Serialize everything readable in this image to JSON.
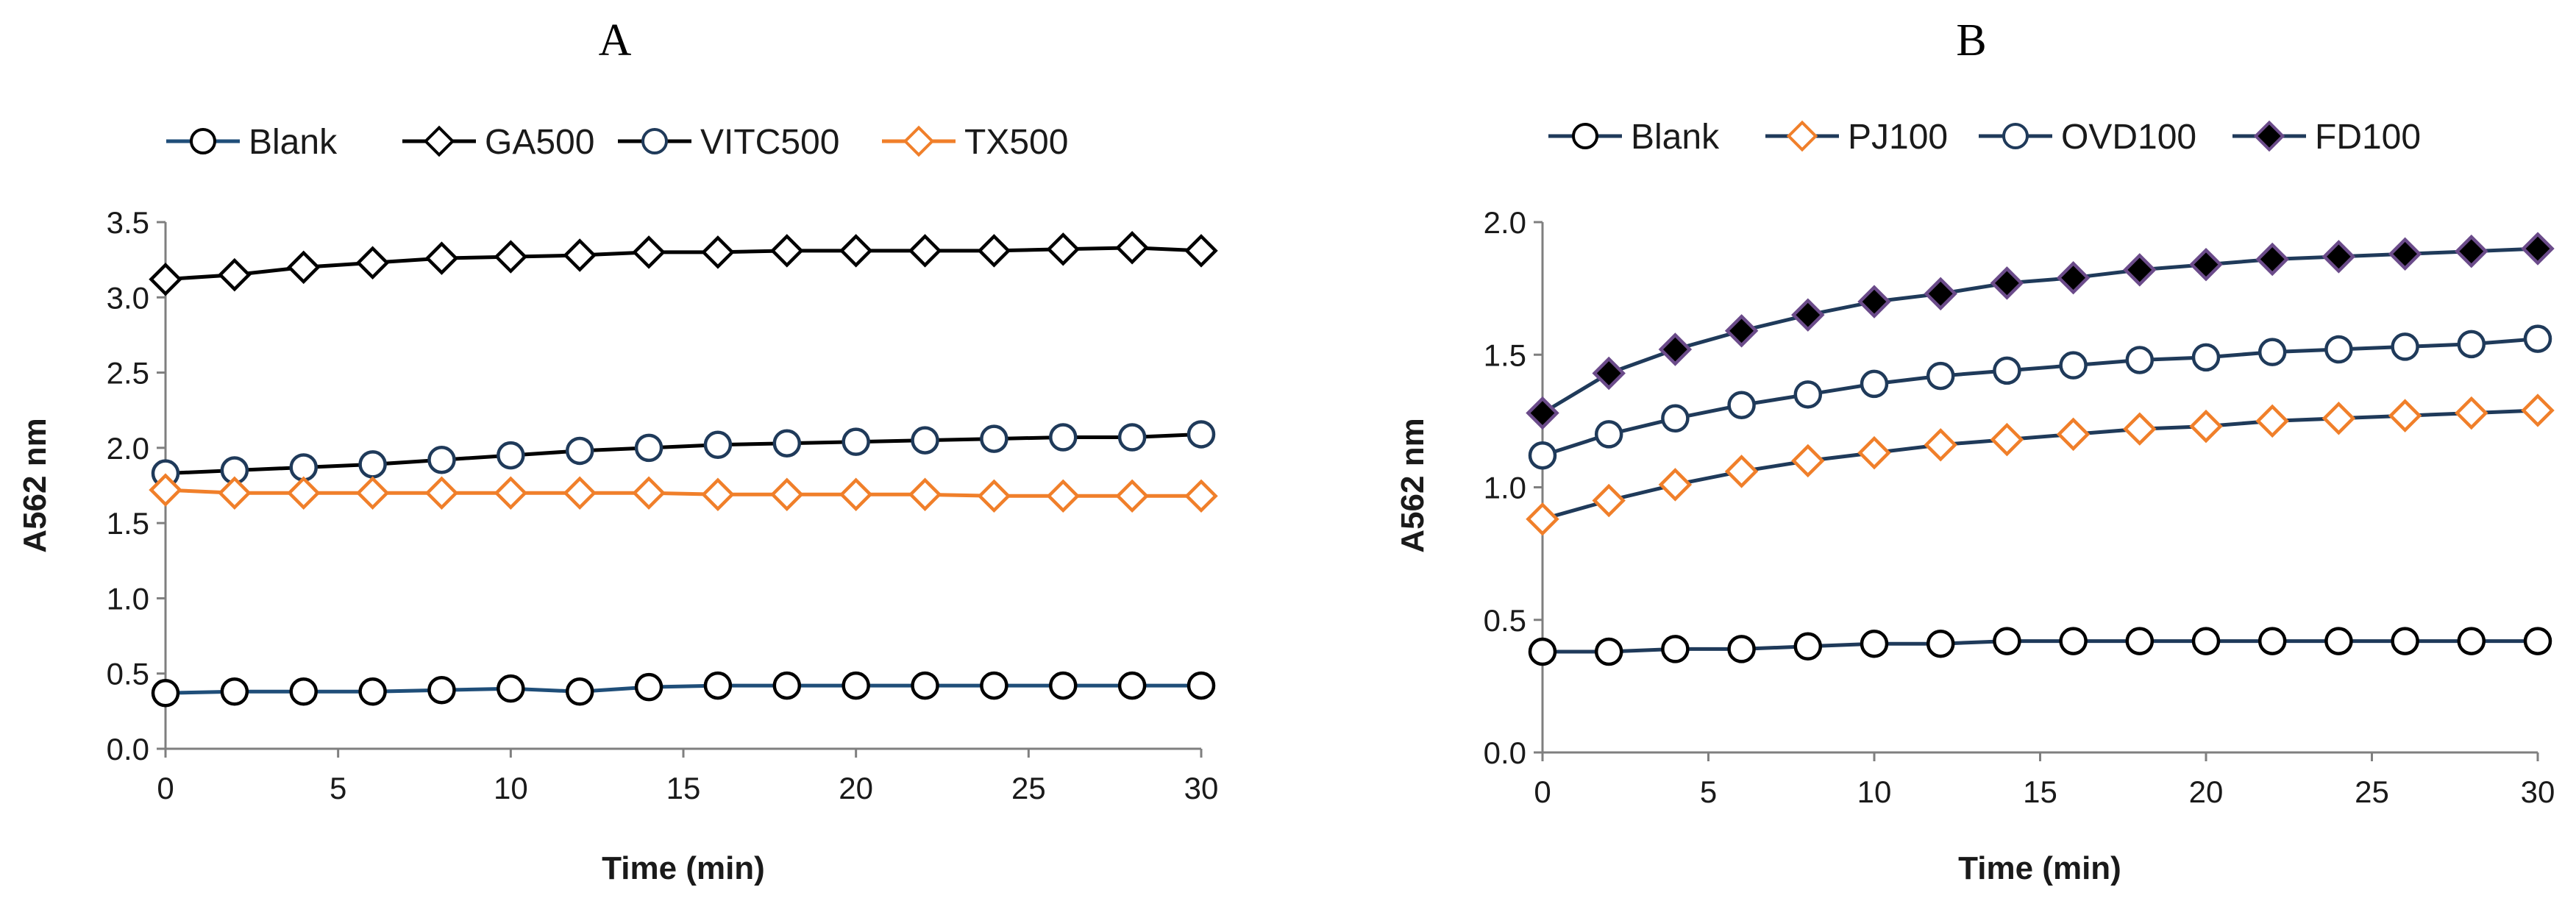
{
  "chart_data": [
    {
      "type": "line",
      "panel": "A",
      "xlabel": "Time (min)",
      "ylabel": "A562 nm",
      "xlim": [
        0,
        30
      ],
      "ylim": [
        0.0,
        3.5
      ],
      "xticks": [
        "0",
        "5",
        "10",
        "15",
        "20",
        "25",
        "30"
      ],
      "yticks": [
        "0.0",
        "0.5",
        "1.0",
        "1.5",
        "2.0",
        "2.5",
        "3.0",
        "3.5"
      ],
      "grid": false,
      "legend_position": "top",
      "x": [
        0,
        2,
        4,
        6,
        8,
        10,
        12,
        14,
        16,
        18,
        20,
        22,
        24,
        26,
        28,
        30
      ],
      "series": [
        {
          "name": "Blank",
          "marker": "circle",
          "line_color": "#1f4e79",
          "marker_edge": "#000000",
          "marker_fill": "#ffffff",
          "values": [
            0.37,
            0.38,
            0.38,
            0.38,
            0.39,
            0.4,
            0.38,
            0.41,
            0.42,
            0.42,
            0.42,
            0.42,
            0.42,
            0.42,
            0.42,
            0.42
          ]
        },
        {
          "name": "GA500",
          "marker": "diamond",
          "line_color": "#000000",
          "marker_edge": "#000000",
          "marker_fill": "#ffffff",
          "values": [
            3.12,
            3.15,
            3.2,
            3.23,
            3.26,
            3.27,
            3.28,
            3.3,
            3.3,
            3.31,
            3.31,
            3.31,
            3.31,
            3.32,
            3.33,
            3.31
          ]
        },
        {
          "name": "VITC500",
          "marker": "circle",
          "line_color": "#000000",
          "marker_edge": "#1f3a5a",
          "marker_fill": "#ffffff",
          "values": [
            1.83,
            1.85,
            1.87,
            1.89,
            1.92,
            1.95,
            1.98,
            2.0,
            2.02,
            2.03,
            2.04,
            2.05,
            2.06,
            2.07,
            2.07,
            2.09
          ]
        },
        {
          "name": "TX500",
          "marker": "diamond",
          "line_color": "#f07f2a",
          "marker_edge": "#f07f2a",
          "marker_fill": "#ffffff",
          "values": [
            1.72,
            1.7,
            1.7,
            1.7,
            1.7,
            1.7,
            1.7,
            1.7,
            1.69,
            1.69,
            1.69,
            1.69,
            1.68,
            1.68,
            1.68,
            1.68
          ]
        }
      ]
    },
    {
      "type": "line",
      "panel": "B",
      "xlabel": "Time (min)",
      "ylabel": "A562 nm",
      "xlim": [
        0,
        30
      ],
      "ylim": [
        0.0,
        2.0
      ],
      "xticks": [
        "0",
        "5",
        "10",
        "15",
        "20",
        "25",
        "30"
      ],
      "yticks": [
        "0.0",
        "0.5",
        "1.0",
        "1.5",
        "2.0"
      ],
      "grid": false,
      "legend_position": "top",
      "x": [
        0,
        2,
        4,
        6,
        8,
        10,
        12,
        14,
        16,
        18,
        20,
        22,
        24,
        26,
        28,
        30
      ],
      "series": [
        {
          "name": "Blank",
          "marker": "circle",
          "line_color": "#1f3a5a",
          "marker_edge": "#000000",
          "marker_fill": "#ffffff",
          "values": [
            0.38,
            0.38,
            0.39,
            0.39,
            0.4,
            0.41,
            0.41,
            0.42,
            0.42,
            0.42,
            0.42,
            0.42,
            0.42,
            0.42,
            0.42,
            0.42
          ]
        },
        {
          "name": "PJ100",
          "marker": "diamond",
          "line_color": "#1f3a5a",
          "marker_edge": "#f07f2a",
          "marker_fill": "#ffffff",
          "values": [
            0.88,
            0.95,
            1.01,
            1.06,
            1.1,
            1.13,
            1.16,
            1.18,
            1.2,
            1.22,
            1.23,
            1.25,
            1.26,
            1.27,
            1.28,
            1.29
          ]
        },
        {
          "name": "OVD100",
          "marker": "circle",
          "line_color": "#1f3a5a",
          "marker_edge": "#1f3a5a",
          "marker_fill": "#ffffff",
          "values": [
            1.12,
            1.2,
            1.26,
            1.31,
            1.35,
            1.39,
            1.42,
            1.44,
            1.46,
            1.48,
            1.49,
            1.51,
            1.52,
            1.53,
            1.54,
            1.56
          ]
        },
        {
          "name": "FD100",
          "marker": "diamond",
          "line_color": "#1f3a5a",
          "marker_edge": "#6b4b8a",
          "marker_fill": "#000000",
          "values": [
            1.28,
            1.43,
            1.52,
            1.59,
            1.65,
            1.7,
            1.73,
            1.77,
            1.79,
            1.82,
            1.84,
            1.86,
            1.87,
            1.88,
            1.89,
            1.9
          ]
        }
      ]
    }
  ]
}
